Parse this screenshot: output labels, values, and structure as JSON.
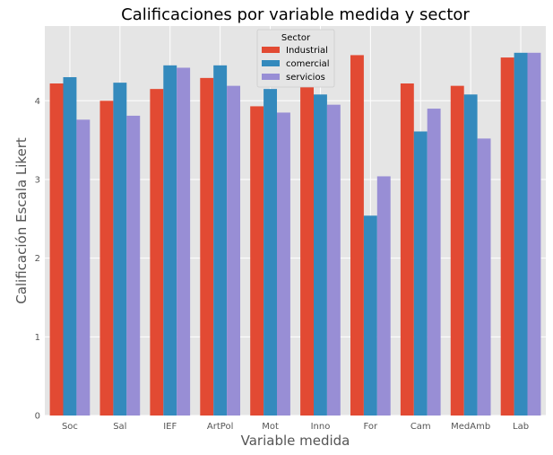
{
  "chart_data": {
    "type": "bar",
    "title": "Calificaciones por variable medida y sector",
    "xlabel": "Variable medida",
    "ylabel": "Calificación Escala Likert",
    "categories": [
      "Soc",
      "Sal",
      "IEF",
      "ArtPol",
      "Mot",
      "Inno",
      "For",
      "Cam",
      "MedAmb",
      "Lab"
    ],
    "ylim": [
      0,
      4.95
    ],
    "yticks": [
      0,
      1,
      2,
      3,
      4
    ],
    "grid": true,
    "legend": {
      "title": "Sector",
      "position": "top-center"
    },
    "series": [
      {
        "name": "Industrial",
        "color": "#E24A33",
        "values": [
          4.22,
          4.0,
          4.15,
          4.29,
          3.93,
          4.37,
          4.58,
          4.22,
          4.19,
          4.55
        ]
      },
      {
        "name": "comercial",
        "color": "#348ABD",
        "values": [
          4.3,
          4.23,
          4.45,
          4.45,
          4.15,
          4.08,
          2.54,
          3.61,
          4.08,
          4.61
        ]
      },
      {
        "name": "servicios",
        "color": "#988ED5",
        "values": [
          3.76,
          3.81,
          4.42,
          4.19,
          3.85,
          3.95,
          3.04,
          3.9,
          3.52,
          4.61
        ]
      }
    ]
  }
}
